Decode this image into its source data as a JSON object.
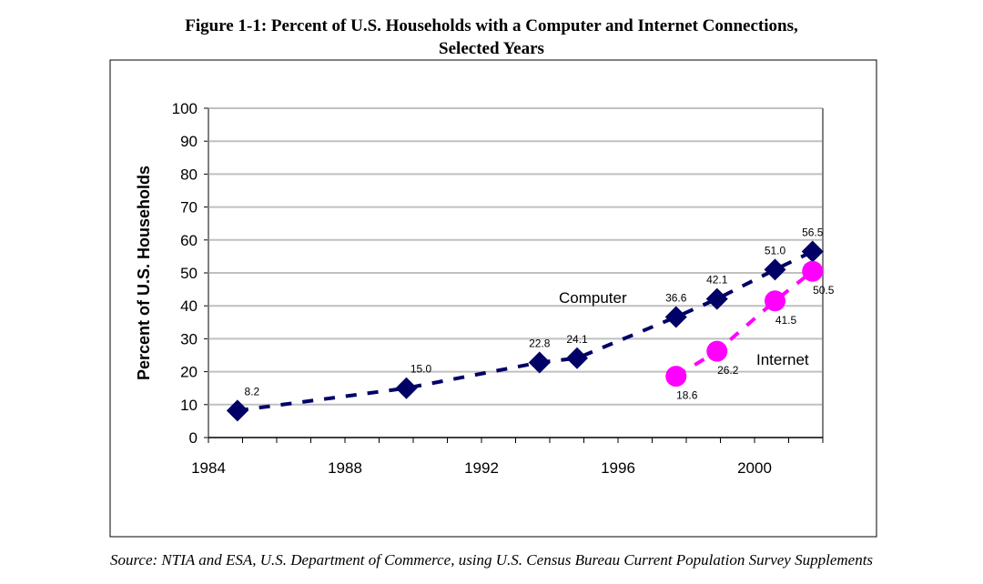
{
  "chart_data": {
    "type": "line",
    "title": "Figure 1-1: Percent of U.S. Households with a Computer and Internet Connections,",
    "subtitle": "Selected Years",
    "xlabel": "",
    "ylabel": "Percent of U.S. Households",
    "xlim": [
      1984,
      2002
    ],
    "ylim": [
      0,
      100
    ],
    "xticks": [
      "1984",
      "1988",
      "1992",
      "1996",
      "2000"
    ],
    "yticks": [
      "0",
      "10",
      "20",
      "30",
      "40",
      "50",
      "60",
      "70",
      "80",
      "90",
      "100"
    ],
    "grid": true,
    "series": [
      {
        "name": "Computer",
        "color": "#000066",
        "marker": "diamond",
        "x": [
          1984.85,
          1989.8,
          1993.7,
          1994.8,
          1997.7,
          1998.9,
          2000.6,
          2001.7
        ],
        "values": [
          8.2,
          15.0,
          22.8,
          24.1,
          36.6,
          42.1,
          51.0,
          56.5
        ],
        "labels": [
          "8.2",
          "15.0",
          "22.8",
          "24.1",
          "36.6",
          "42.1",
          "51.0",
          "56.5"
        ]
      },
      {
        "name": "Internet",
        "color": "#ff00ff",
        "marker": "circle",
        "x": [
          1997.7,
          1998.9,
          2000.6,
          2001.7
        ],
        "values": [
          18.6,
          26.2,
          41.5,
          50.5
        ],
        "labels": [
          "18.6",
          "26.2",
          "41.5",
          "50.5"
        ]
      }
    ],
    "source": "Source: NTIA and ESA, U.S. Department of Commerce, using U.S. Census Bureau Current Population Survey Supplements"
  }
}
